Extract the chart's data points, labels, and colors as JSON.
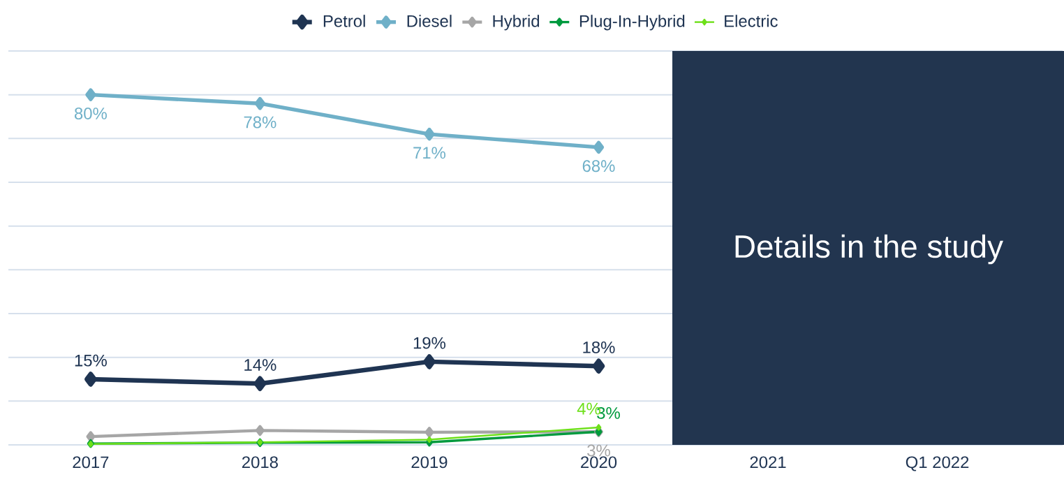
{
  "chart_data": {
    "type": "line",
    "categories": [
      "2017",
      "2018",
      "2019",
      "2020",
      "2021",
      "Q1 2022"
    ],
    "series": [
      {
        "name": "Petrol",
        "color": "#1f3452",
        "values": [
          15,
          14,
          19,
          18,
          null,
          null
        ],
        "value_labels": [
          "15%",
          "14%",
          "19%",
          "18%",
          null,
          null
        ]
      },
      {
        "name": "Diesel",
        "color": "#6fb0c8",
        "values": [
          80,
          78,
          71,
          68,
          null,
          null
        ],
        "value_labels": [
          "80%",
          "78%",
          "71%",
          "68%",
          null,
          null
        ]
      },
      {
        "name": "Hybrid",
        "color": "#a6a6a6",
        "values": [
          1.9,
          3.3,
          2.9,
          3,
          null,
          null
        ],
        "value_labels": [
          null,
          null,
          null,
          "3%",
          null,
          null
        ]
      },
      {
        "name": "Plug-In-Hybrid",
        "color": "#009a3e",
        "values": [
          0.3,
          0.5,
          0.6,
          3,
          null,
          null
        ],
        "value_labels": [
          null,
          null,
          null,
          "3%",
          null,
          null
        ]
      },
      {
        "name": "Electric",
        "color": "#6ee01a",
        "values": [
          0.2,
          0.6,
          1.2,
          4,
          null,
          null
        ],
        "value_labels": [
          null,
          null,
          null,
          "4%",
          null,
          null
        ]
      }
    ],
    "ylim": [
      0,
      90
    ],
    "yticks": [
      {
        "value": 0,
        "label": null
      },
      {
        "value": 10,
        "label": null
      },
      {
        "value": 20,
        "label": null
      },
      {
        "value": 30,
        "label": null
      },
      {
        "value": 40,
        "label": null
      },
      {
        "value": 50,
        "label": null
      },
      {
        "value": 60,
        "label": null
      },
      {
        "value": 70,
        "label": null
      },
      {
        "value": 80,
        "label": null
      },
      {
        "value": 90,
        "label": null
      }
    ],
    "tick_labels": "x",
    "grid": "y",
    "legend": "top",
    "marker": "diamond",
    "line_style": "solid",
    "annotations": [
      "Details in the study"
    ]
  }
}
